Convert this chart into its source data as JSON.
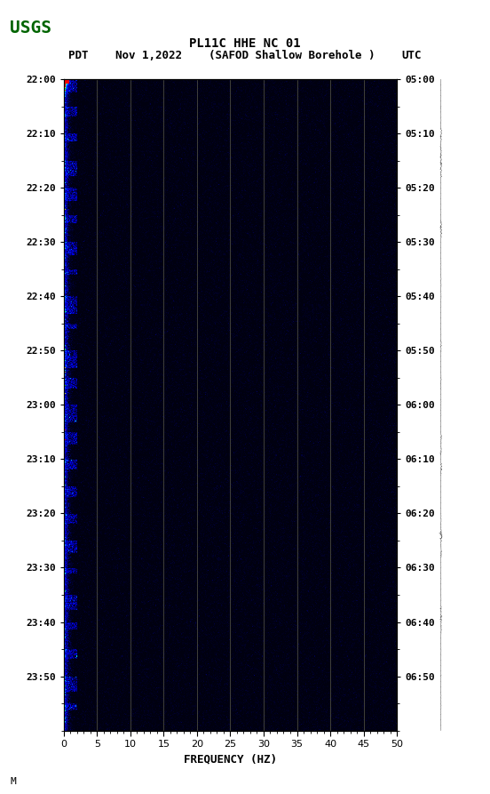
{
  "title_line1": "PL11C HHE NC 01",
  "title_line2": "(SAFOD Shallow Borehole )",
  "date": "Nov 1,2022",
  "left_label": "PDT",
  "right_label": "UTC",
  "left_yticks": [
    "22:00",
    "22:10",
    "22:20",
    "22:30",
    "22:40",
    "22:50",
    "23:00",
    "23:10",
    "23:20",
    "23:30",
    "23:40",
    "23:50"
  ],
  "right_yticks": [
    "05:00",
    "05:10",
    "05:20",
    "05:30",
    "05:40",
    "05:50",
    "06:00",
    "06:10",
    "06:20",
    "06:30",
    "06:40",
    "06:50"
  ],
  "xticks": [
    0,
    5,
    10,
    15,
    20,
    25,
    30,
    35,
    40,
    45,
    50
  ],
  "xlabel": "FREQUENCY (HZ)",
  "freq_max": 50,
  "freq_min": 0,
  "bg_color": "#ffffff",
  "spectrogram_bg": "#00008B",
  "grid_color": "#808060",
  "low_freq_color_1": "#FF0000",
  "low_freq_color_2": "#FFFF00",
  "low_freq_color_3": "#00FFFF",
  "top_bar_colors": [
    "#FF0000",
    "#FFAA00",
    "#FFFF00",
    "#00FF00",
    "#00FFFF",
    "#0088FF",
    "#0000FF"
  ],
  "fig_width": 5.52,
  "fig_height": 8.93,
  "dpi": 100
}
